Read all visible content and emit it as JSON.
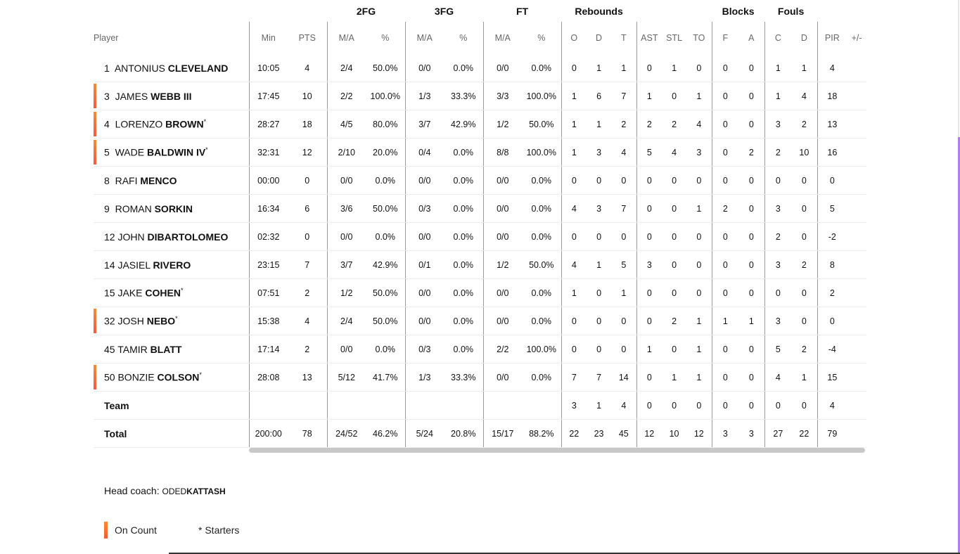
{
  "groups": {
    "fg2": "2FG",
    "fg3": "3FG",
    "ft": "FT",
    "reb": "Rebounds",
    "blk": "Blocks",
    "fouls": "Fouls"
  },
  "columns": [
    "Player",
    "Min",
    "PTS",
    "M/A",
    "%",
    "M/A",
    "%",
    "M/A",
    "%",
    "O",
    "D",
    "T",
    "AST",
    "STL",
    "TO",
    "F",
    "A",
    "C",
    "D",
    "PIR",
    "+/-"
  ],
  "players": [
    {
      "num": "1",
      "first": "ANTONIUS",
      "last": "CLEVELAND",
      "starter": false,
      "on_court": false,
      "stats": [
        "10:05",
        "4",
        "2/4",
        "50.0%",
        "0/0",
        "0.0%",
        "0/0",
        "0.0%",
        "0",
        "1",
        "1",
        "0",
        "1",
        "0",
        "0",
        "0",
        "1",
        "1",
        "4",
        ""
      ]
    },
    {
      "num": "3",
      "first": "JAMES",
      "last": "WEBB III",
      "starter": false,
      "on_court": true,
      "stats": [
        "17:45",
        "10",
        "2/2",
        "100.0%",
        "1/3",
        "33.3%",
        "3/3",
        "100.0%",
        "1",
        "6",
        "7",
        "1",
        "0",
        "1",
        "0",
        "0",
        "1",
        "4",
        "18",
        ""
      ]
    },
    {
      "num": "4",
      "first": "LORENZO",
      "last": "BROWN",
      "starter": true,
      "on_court": true,
      "stats": [
        "28:27",
        "18",
        "4/5",
        "80.0%",
        "3/7",
        "42.9%",
        "1/2",
        "50.0%",
        "1",
        "1",
        "2",
        "2",
        "2",
        "4",
        "0",
        "0",
        "3",
        "2",
        "13",
        ""
      ]
    },
    {
      "num": "5",
      "first": "WADE",
      "last": "BALDWIN IV",
      "starter": true,
      "on_court": true,
      "stats": [
        "32:31",
        "12",
        "2/10",
        "20.0%",
        "0/4",
        "0.0%",
        "8/8",
        "100.0%",
        "1",
        "3",
        "4",
        "5",
        "4",
        "3",
        "0",
        "2",
        "2",
        "10",
        "16",
        ""
      ]
    },
    {
      "num": "8",
      "first": "RAFI",
      "last": "MENCO",
      "starter": false,
      "on_court": false,
      "stats": [
        "00:00",
        "0",
        "0/0",
        "0.0%",
        "0/0",
        "0.0%",
        "0/0",
        "0.0%",
        "0",
        "0",
        "0",
        "0",
        "0",
        "0",
        "0",
        "0",
        "0",
        "0",
        "0",
        ""
      ]
    },
    {
      "num": "9",
      "first": "ROMAN",
      "last": "SORKIN",
      "starter": false,
      "on_court": false,
      "stats": [
        "16:34",
        "6",
        "3/6",
        "50.0%",
        "0/3",
        "0.0%",
        "0/0",
        "0.0%",
        "4",
        "3",
        "7",
        "0",
        "0",
        "1",
        "2",
        "0",
        "3",
        "0",
        "5",
        ""
      ]
    },
    {
      "num": "12",
      "first": "JOHN",
      "last": "DIBARTOLOMEO",
      "starter": false,
      "on_court": false,
      "stats": [
        "02:32",
        "0",
        "0/0",
        "0.0%",
        "0/0",
        "0.0%",
        "0/0",
        "0.0%",
        "0",
        "0",
        "0",
        "0",
        "0",
        "0",
        "0",
        "0",
        "2",
        "0",
        "-2",
        ""
      ]
    },
    {
      "num": "14",
      "first": "JASIEL",
      "last": "RIVERO",
      "starter": false,
      "on_court": false,
      "stats": [
        "23:15",
        "7",
        "3/7",
        "42.9%",
        "0/1",
        "0.0%",
        "1/2",
        "50.0%",
        "4",
        "1",
        "5",
        "3",
        "0",
        "0",
        "0",
        "0",
        "3",
        "2",
        "8",
        ""
      ]
    },
    {
      "num": "15",
      "first": "JAKE",
      "last": "COHEN",
      "starter": true,
      "on_court": false,
      "stats": [
        "07:51",
        "2",
        "1/2",
        "50.0%",
        "0/0",
        "0.0%",
        "0/0",
        "0.0%",
        "1",
        "0",
        "1",
        "0",
        "0",
        "0",
        "0",
        "0",
        "0",
        "0",
        "2",
        ""
      ]
    },
    {
      "num": "32",
      "first": "JOSH",
      "last": "NEBO",
      "starter": true,
      "on_court": true,
      "stats": [
        "15:38",
        "4",
        "2/4",
        "50.0%",
        "0/0",
        "0.0%",
        "0/0",
        "0.0%",
        "0",
        "0",
        "0",
        "0",
        "2",
        "1",
        "1",
        "1",
        "3",
        "0",
        "0",
        ""
      ]
    },
    {
      "num": "45",
      "first": "TAMIR",
      "last": "BLATT",
      "starter": false,
      "on_court": false,
      "stats": [
        "17:14",
        "2",
        "0/0",
        "0.0%",
        "0/3",
        "0.0%",
        "2/2",
        "100.0%",
        "0",
        "0",
        "0",
        "1",
        "0",
        "1",
        "0",
        "0",
        "5",
        "2",
        "-4",
        ""
      ]
    },
    {
      "num": "50",
      "first": "BONZIE",
      "last": "COLSON",
      "starter": true,
      "on_court": true,
      "stats": [
        "28:08",
        "13",
        "5/12",
        "41.7%",
        "1/3",
        "33.3%",
        "0/0",
        "0.0%",
        "7",
        "7",
        "14",
        "0",
        "1",
        "1",
        "0",
        "0",
        "4",
        "1",
        "15",
        ""
      ]
    }
  ],
  "team": {
    "label": "Team",
    "stats": [
      "",
      "",
      "",
      "",
      "",
      "",
      "",
      "",
      "3",
      "1",
      "4",
      "0",
      "0",
      "0",
      "0",
      "0",
      "0",
      "0",
      "4",
      ""
    ]
  },
  "total": {
    "label": "Total",
    "stats": [
      "200:00",
      "78",
      "24/52",
      "46.2%",
      "5/24",
      "20.8%",
      "15/17",
      "88.2%",
      "22",
      "23",
      "45",
      "12",
      "10",
      "12",
      "3",
      "3",
      "27",
      "22",
      "79",
      ""
    ]
  },
  "coach": {
    "label": "Head coach:",
    "first": "ODED",
    "last": "KATTASH"
  },
  "legend": {
    "on_count": "On Count",
    "starters": "* Starters"
  },
  "colors": {
    "on_court": "#f26b35",
    "divider": "#9a9a9a",
    "scroll_accent": "#b57bee"
  }
}
